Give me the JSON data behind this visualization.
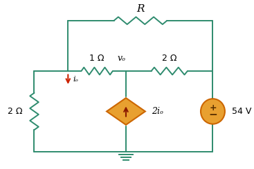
{
  "bg_color": "#ffffff",
  "wire_color": "#2e8b6e",
  "resistor_color": "#2e8b6e",
  "text_color": "#000000",
  "arrow_color": "#cc2200",
  "dep_source_face": "#e8a030",
  "dep_source_edge": "#cc6600",
  "dep_arrow_color": "#cc2200",
  "indep_source_face": "#e8a030",
  "indep_source_edge": "#cc6600",
  "ground_color": "#2e8b6e",
  "R_label": "R",
  "R1_label": "1 Ω",
  "R2_label": "2 Ω",
  "R3_label": "2 Ω",
  "vo_label": "vₒ",
  "io_label": "iₒ",
  "dep_label": "2iₒ",
  "vsrc_label": "54 V",
  "fig_width": 3.67,
  "fig_height": 2.45,
  "dpi": 100
}
